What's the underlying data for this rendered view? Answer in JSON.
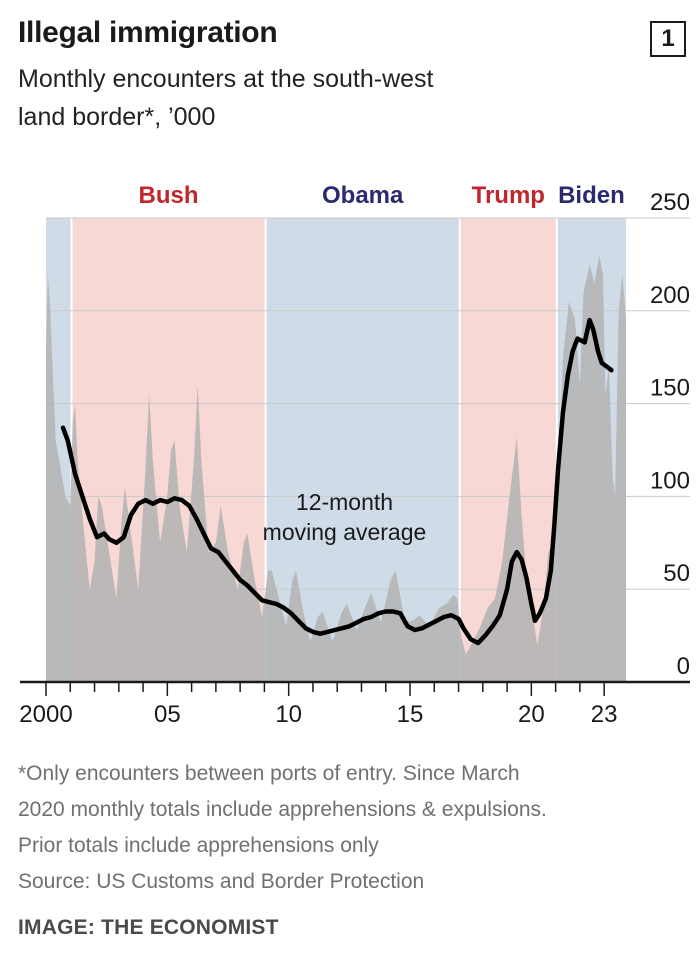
{
  "header": {
    "title": "Illegal immigration",
    "chart_number": "1",
    "subtitle_line1": "Monthly encounters at the south-west",
    "subtitle_line2": "land border*, ’000"
  },
  "footnote": {
    "line1": "*Only encounters between ports of entry. Since March",
    "line2": "2020 monthly totals include apprehensions & expulsions.",
    "line3": "Prior totals include apprehensions only",
    "source": "Source: US Customs and Border Protection"
  },
  "credit": "IMAGE: THE ECONOMIST",
  "chart_data": {
    "type": "area",
    "x_range": [
      2000,
      2023.9
    ],
    "ylim": [
      0,
      250
    ],
    "y_ticks": [
      0,
      50,
      100,
      150,
      200,
      250
    ],
    "x_ticks": [
      {
        "year": 2000,
        "label": "2000"
      },
      {
        "year": 2005,
        "label": "05"
      },
      {
        "year": 2010,
        "label": "10"
      },
      {
        "year": 2015,
        "label": "15"
      },
      {
        "year": 2020,
        "label": "20"
      },
      {
        "year": 2023,
        "label": "23"
      }
    ],
    "grid": true,
    "presidencies": [
      {
        "name": "",
        "start": 2000,
        "end": 2001.05,
        "color": "#cfdce8"
      },
      {
        "name": "Bush",
        "start": 2001.05,
        "end": 2009.05,
        "color": "#f8d8d4",
        "label_color": "#c0272d"
      },
      {
        "name": "Obama",
        "start": 2009.05,
        "end": 2017.05,
        "color": "#cfdce8",
        "label_color": "#2a2a6e"
      },
      {
        "name": "Trump",
        "start": 2017.05,
        "end": 2021.05,
        "color": "#f8d8d4",
        "label_color": "#c0272d"
      },
      {
        "name": "Biden",
        "start": 2021.05,
        "end": 2023.9,
        "color": "#cfdce8",
        "label_color": "#2a2a6e"
      }
    ],
    "annotation": {
      "line1": "12-month",
      "line2": "moving average",
      "x": 2012.3,
      "y": 83
    },
    "monthly_encounters": {
      "name": "",
      "color": "#b5b5b5",
      "points": [
        [
          2000.0,
          180
        ],
        [
          2000.08,
          220
        ],
        [
          2000.16,
          205
        ],
        [
          2000.25,
          175
        ],
        [
          2000.4,
          130
        ],
        [
          2000.6,
          115
        ],
        [
          2000.8,
          100
        ],
        [
          2001.0,
          95
        ],
        [
          2001.1,
          140
        ],
        [
          2001.2,
          150
        ],
        [
          2001.3,
          120
        ],
        [
          2001.5,
          90
        ],
        [
          2001.8,
          50
        ],
        [
          2002.0,
          65
        ],
        [
          2002.15,
          100
        ],
        [
          2002.3,
          95
        ],
        [
          2002.6,
          70
        ],
        [
          2002.9,
          45
        ],
        [
          2003.1,
          85
        ],
        [
          2003.25,
          105
        ],
        [
          2003.5,
          80
        ],
        [
          2003.8,
          50
        ],
        [
          2004.1,
          115
        ],
        [
          2004.25,
          155
        ],
        [
          2004.4,
          120
        ],
        [
          2004.7,
          75
        ],
        [
          2005.0,
          100
        ],
        [
          2005.15,
          125
        ],
        [
          2005.3,
          130
        ],
        [
          2005.5,
          95
        ],
        [
          2005.8,
          70
        ],
        [
          2006.1,
          120
        ],
        [
          2006.25,
          160
        ],
        [
          2006.4,
          120
        ],
        [
          2006.7,
          70
        ],
        [
          2007.0,
          75
        ],
        [
          2007.2,
          95
        ],
        [
          2007.5,
          70
        ],
        [
          2007.9,
          50
        ],
        [
          2008.15,
          75
        ],
        [
          2008.3,
          80
        ],
        [
          2008.6,
          55
        ],
        [
          2008.9,
          35
        ],
        [
          2009.15,
          60
        ],
        [
          2009.3,
          60
        ],
        [
          2009.6,
          45
        ],
        [
          2009.9,
          30
        ],
        [
          2010.15,
          55
        ],
        [
          2010.3,
          60
        ],
        [
          2010.6,
          38
        ],
        [
          2010.9,
          22
        ],
        [
          2011.2,
          35
        ],
        [
          2011.4,
          38
        ],
        [
          2011.8,
          22
        ],
        [
          2012.2,
          38
        ],
        [
          2012.4,
          42
        ],
        [
          2012.8,
          28
        ],
        [
          2013.2,
          42
        ],
        [
          2013.4,
          48
        ],
        [
          2013.8,
          32
        ],
        [
          2014.2,
          55
        ],
        [
          2014.4,
          60
        ],
        [
          2014.8,
          32
        ],
        [
          2015.1,
          33
        ],
        [
          2015.4,
          36
        ],
        [
          2015.8,
          30
        ],
        [
          2016.2,
          40
        ],
        [
          2016.5,
          42
        ],
        [
          2016.8,
          47
        ],
        [
          2016.95,
          45
        ],
        [
          2017.1,
          25
        ],
        [
          2017.3,
          15
        ],
        [
          2017.6,
          22
        ],
        [
          2017.9,
          30
        ],
        [
          2018.2,
          40
        ],
        [
          2018.5,
          45
        ],
        [
          2018.8,
          65
        ],
        [
          2019.1,
          100
        ],
        [
          2019.4,
          132
        ],
        [
          2019.6,
          90
        ],
        [
          2019.8,
          55
        ],
        [
          2020.0,
          40
        ],
        [
          2020.25,
          20
        ],
        [
          2020.5,
          40
        ],
        [
          2020.7,
          70
        ],
        [
          2020.9,
          75
        ],
        [
          2021.1,
          100
        ],
        [
          2021.3,
          175
        ],
        [
          2021.55,
          205
        ],
        [
          2021.8,
          195
        ],
        [
          2022.0,
          160
        ],
        [
          2022.15,
          210
        ],
        [
          2022.4,
          225
        ],
        [
          2022.6,
          215
        ],
        [
          2022.8,
          230
        ],
        [
          2022.95,
          220
        ],
        [
          2023.05,
          155
        ],
        [
          2023.2,
          170
        ],
        [
          2023.35,
          110
        ],
        [
          2023.45,
          100
        ],
        [
          2023.6,
          200
        ],
        [
          2023.75,
          220
        ],
        [
          2023.9,
          195
        ]
      ]
    },
    "moving_average": {
      "name": "12-month moving average",
      "color": "#000000",
      "points": [
        [
          2000.7,
          137
        ],
        [
          2000.9,
          130
        ],
        [
          2001.2,
          112
        ],
        [
          2001.5,
          100
        ],
        [
          2001.8,
          88
        ],
        [
          2002.1,
          78
        ],
        [
          2002.4,
          80
        ],
        [
          2002.6,
          77
        ],
        [
          2002.9,
          75
        ],
        [
          2003.2,
          78
        ],
        [
          2003.5,
          90
        ],
        [
          2003.8,
          96
        ],
        [
          2004.1,
          98
        ],
        [
          2004.4,
          96
        ],
        [
          2004.7,
          98
        ],
        [
          2005.0,
          97
        ],
        [
          2005.3,
          99
        ],
        [
          2005.6,
          98
        ],
        [
          2005.9,
          95
        ],
        [
          2006.2,
          88
        ],
        [
          2006.5,
          80
        ],
        [
          2006.8,
          72
        ],
        [
          2007.1,
          70
        ],
        [
          2007.4,
          65
        ],
        [
          2007.7,
          60
        ],
        [
          2008.0,
          55
        ],
        [
          2008.3,
          52
        ],
        [
          2008.6,
          48
        ],
        [
          2008.9,
          44
        ],
        [
          2009.2,
          43
        ],
        [
          2009.5,
          42
        ],
        [
          2009.8,
          40
        ],
        [
          2010.1,
          37
        ],
        [
          2010.4,
          33
        ],
        [
          2010.7,
          29
        ],
        [
          2011.0,
          27
        ],
        [
          2011.3,
          26
        ],
        [
          2011.6,
          27
        ],
        [
          2011.9,
          28
        ],
        [
          2012.2,
          29
        ],
        [
          2012.5,
          30
        ],
        [
          2012.8,
          32
        ],
        [
          2013.1,
          34
        ],
        [
          2013.4,
          35
        ],
        [
          2013.7,
          37
        ],
        [
          2014.0,
          38
        ],
        [
          2014.3,
          38
        ],
        [
          2014.6,
          37
        ],
        [
          2014.9,
          30
        ],
        [
          2015.2,
          28
        ],
        [
          2015.5,
          29
        ],
        [
          2015.8,
          31
        ],
        [
          2016.1,
          33
        ],
        [
          2016.4,
          35
        ],
        [
          2016.7,
          36
        ],
        [
          2017.0,
          34
        ],
        [
          2017.2,
          29
        ],
        [
          2017.5,
          23
        ],
        [
          2017.8,
          21
        ],
        [
          2018.1,
          25
        ],
        [
          2018.4,
          30
        ],
        [
          2018.7,
          36
        ],
        [
          2019.0,
          50
        ],
        [
          2019.2,
          65
        ],
        [
          2019.4,
          70
        ],
        [
          2019.6,
          66
        ],
        [
          2019.8,
          56
        ],
        [
          2020.0,
          42
        ],
        [
          2020.15,
          33
        ],
        [
          2020.35,
          37
        ],
        [
          2020.6,
          45
        ],
        [
          2020.8,
          60
        ],
        [
          2020.95,
          85
        ],
        [
          2021.1,
          115
        ],
        [
          2021.3,
          145
        ],
        [
          2021.5,
          165
        ],
        [
          2021.7,
          178
        ],
        [
          2021.9,
          185
        ],
        [
          2022.2,
          183
        ],
        [
          2022.4,
          195
        ],
        [
          2022.55,
          190
        ],
        [
          2022.75,
          178
        ],
        [
          2022.9,
          172
        ],
        [
          2023.1,
          170
        ],
        [
          2023.3,
          168
        ]
      ]
    }
  }
}
